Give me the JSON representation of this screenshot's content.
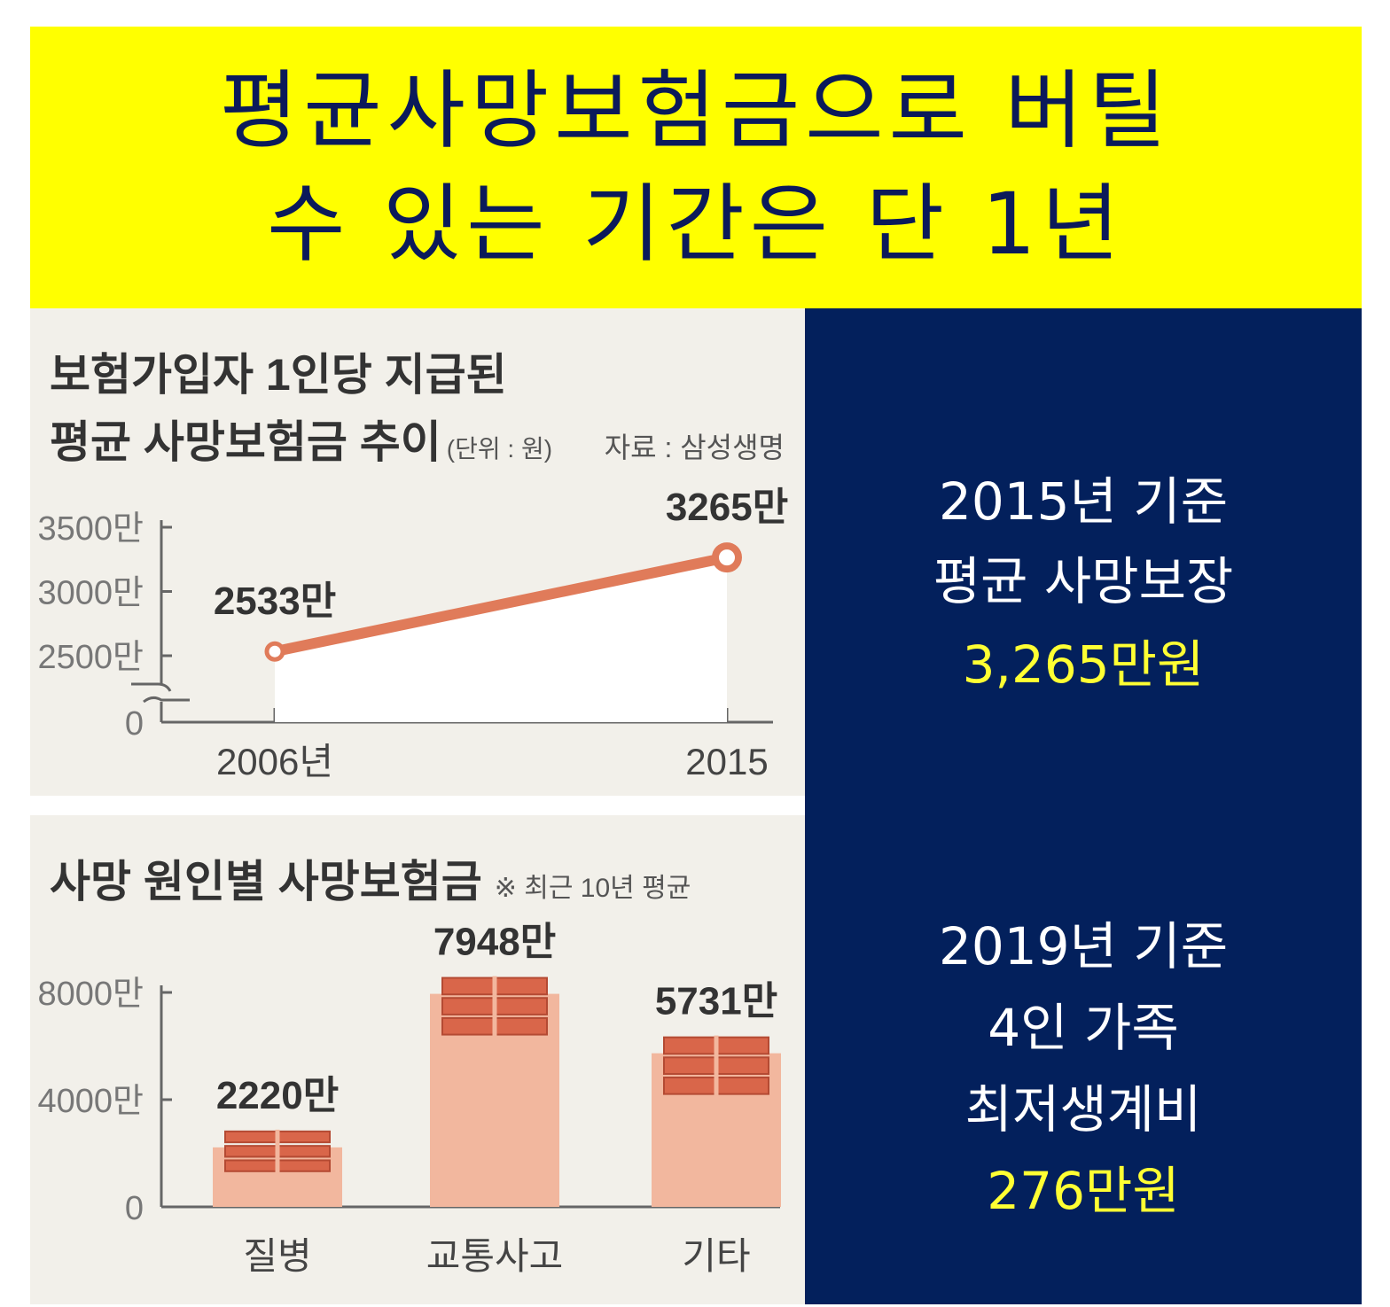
{
  "banner": {
    "line1": "평균사망보험금으로 버틸",
    "line2": "수 있는 기간은 단 1년"
  },
  "chart_data": [
    {
      "type": "line",
      "title_line1": "보험가입자 1인당 지급된",
      "title_line2": "평균 사망보험금 추이",
      "unit": "(단위 : 원)",
      "source": "자료 : 삼성생명",
      "x": [
        "2006년",
        "2015"
      ],
      "series": [
        {
          "values": [
            25330000,
            32650000
          ]
        }
      ],
      "data_labels": [
        "2533만",
        "3265만"
      ],
      "y_ticks": [
        {
          "value": 0,
          "label": "0"
        },
        {
          "value": 25000000,
          "label": "2500만"
        },
        {
          "value": 30000000,
          "label": "3000만"
        },
        {
          "value": 35000000,
          "label": "3500만"
        }
      ],
      "ylim": [
        0,
        35000000
      ],
      "y_axis_break": true,
      "colors": {
        "line": "#e07b5a",
        "fill": "#ffffff"
      }
    },
    {
      "type": "bar",
      "title": "사망 원인별 사망보험금",
      "note": "※ 최근 10년 평균",
      "categories": [
        "질병",
        "교통사고",
        "기타"
      ],
      "values": [
        22200000,
        79480000,
        57310000
      ],
      "data_labels": [
        "2220만",
        "7948만",
        "5731만"
      ],
      "y_ticks": [
        {
          "value": 0,
          "label": "0"
        },
        {
          "value": 40000000,
          "label": "4000만"
        },
        {
          "value": 80000000,
          "label": "8000만"
        }
      ],
      "ylim": [
        0,
        80000000
      ],
      "colors": {
        "bar": "#f2b79e",
        "money": "#d9664a"
      }
    }
  ],
  "info": {
    "block1": {
      "line1": "2015년 기준",
      "line2": "평균 사망보장",
      "amount": "3,265만원"
    },
    "block2": {
      "line1": "2019년 기준",
      "line2": "4인 가족",
      "line3": "최저생계비",
      "amount": "276만원"
    }
  }
}
